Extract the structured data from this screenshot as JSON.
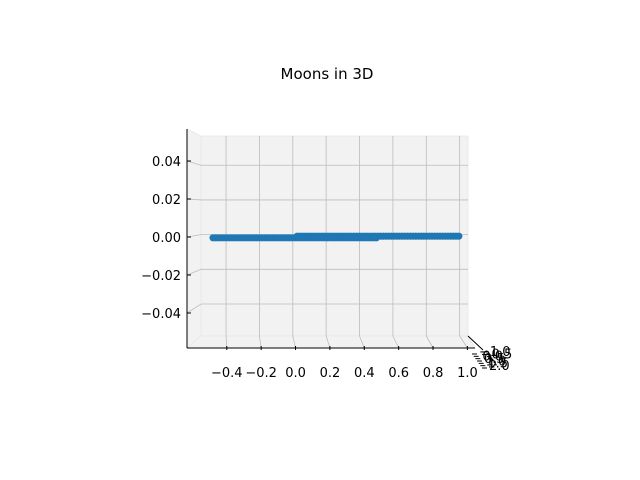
{
  "chart_data": {
    "type": "scatter",
    "projection": "3d",
    "title": "Moons in 3D",
    "xlabel": "",
    "ylabel": "",
    "zlabel": "",
    "grid": true,
    "legend": "none",
    "point_color": "#1f77b4",
    "pane_color": "#f2f2f2",
    "grid_color": "#bcbcbc",
    "xlim": [
      -0.55,
      1.05
    ],
    "zlim": [
      -0.055,
      0.055
    ],
    "x_ticks": [
      -0.4,
      -0.2,
      0.0,
      0.2,
      0.4,
      0.6,
      0.8,
      1.0
    ],
    "x_tick_labels": [
      "−0.4",
      "−0.2",
      "0.0",
      "0.2",
      "0.4",
      "0.6",
      "0.8",
      "1.0"
    ],
    "z_ticks": [
      0.04,
      0.02,
      0.0,
      -0.02,
      -0.04
    ],
    "z_tick_labels": [
      "0.04",
      "0.02",
      "0.00",
      "−0.02",
      "−0.04"
    ],
    "y_tick_labels": [
      "−1.0",
      "−0.5",
      "0.0",
      "0.5",
      "1.0",
      "1.5",
      "2.0"
    ],
    "series": [
      {
        "marker": "o",
        "z_value": 0.0,
        "x_segments": [
          [
            -0.48,
            0.47
          ],
          [
            0.01,
            0.95
          ]
        ]
      }
    ]
  }
}
